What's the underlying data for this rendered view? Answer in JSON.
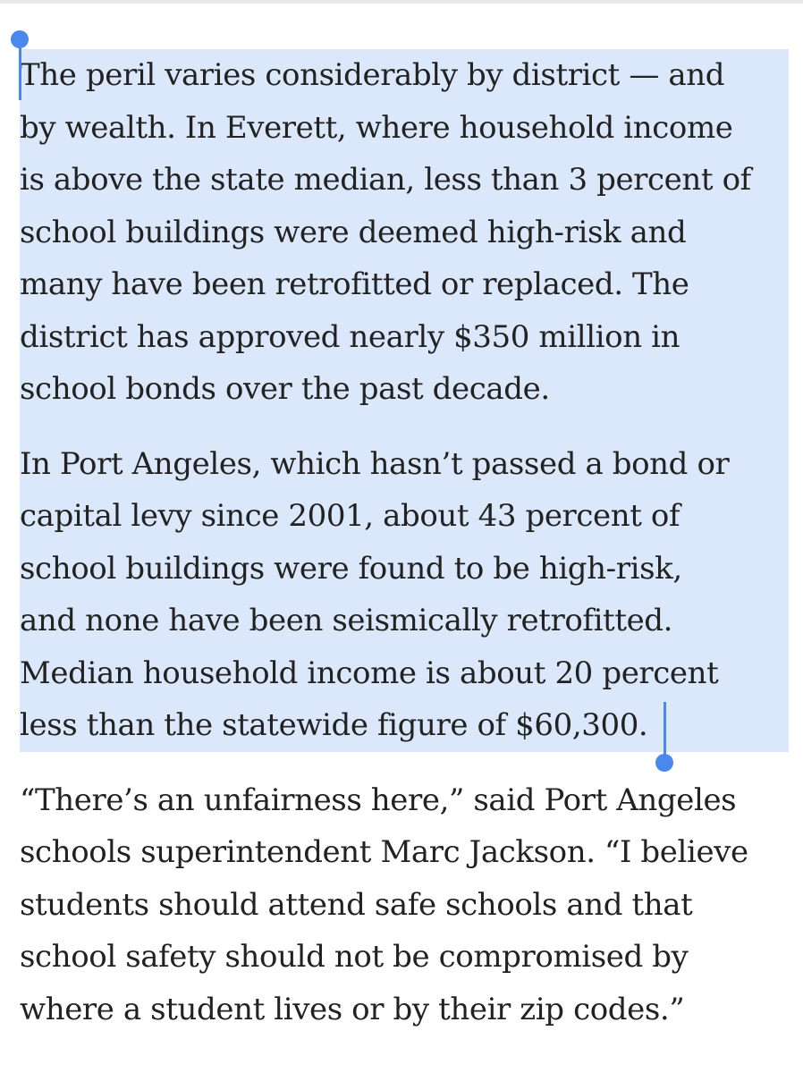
{
  "article": {
    "paragraphs": [
      {
        "selected": true,
        "lines": [
          "The peril varies considerably by district — and",
          "by wealth. In Everett, where household income",
          "is above the state median, less than 3 percent of",
          "school buildings were deemed high-risk and",
          "many have been retrofitted or replaced. The",
          "district has approved nearly $350 million in",
          "school bonds over the past decade."
        ]
      },
      {
        "selected": true,
        "lines": [
          "In Port Angeles, which hasn’t passed a bond or",
          "capital levy since 2001, about 43 percent of",
          "school buildings were found to be high-risk,",
          "and none have been seismically retrofitted.",
          "Median household income is about 20 percent",
          "less than the statewide figure of $60,300."
        ]
      },
      {
        "selected": false,
        "lines": [
          "“There’s an unfairness here,” said Port Angeles",
          "schools superintendent Marc Jackson. “I believe",
          "students should attend safe schools and that",
          "school safety should not be compromised by",
          "where a student lives or by their zip codes.”"
        ]
      }
    ]
  },
  "colors": {
    "selection_highlight": "#dbe8fb",
    "selection_handle": "#4a88f0",
    "text": "#222222"
  }
}
